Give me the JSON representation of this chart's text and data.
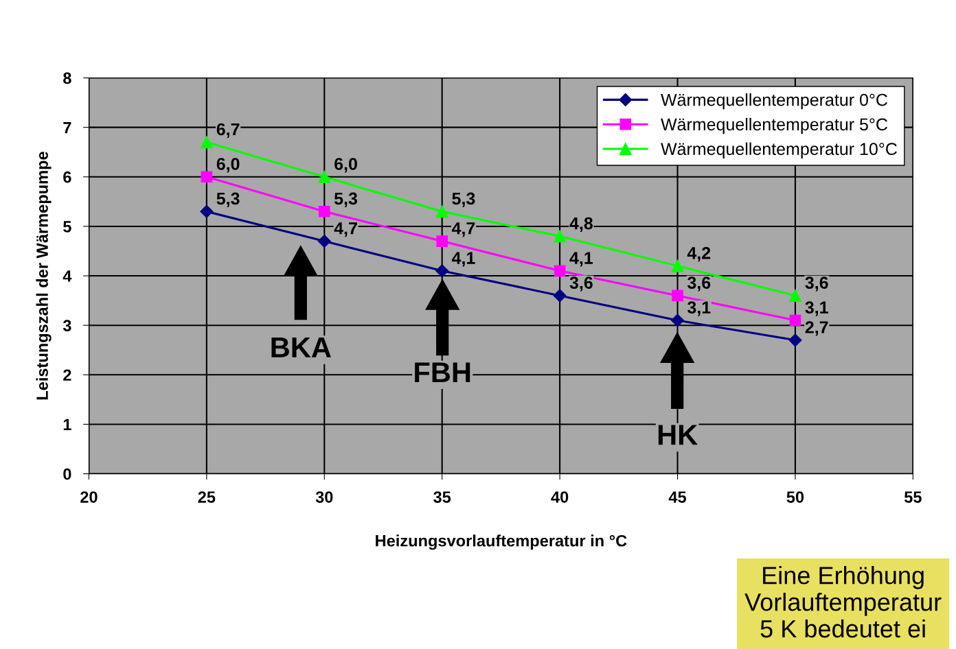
{
  "chart_data": {
    "type": "line",
    "xlabel": "Heizungsvorlauftemperatur in °C",
    "ylabel": "Leistungszahl der Wärmepumpe",
    "x": [
      25,
      30,
      35,
      40,
      45,
      50
    ],
    "series": [
      {
        "name": "Wärmequellentemperatur 0°C",
        "color": "#000080",
        "marker": "diamond",
        "values": [
          5.3,
          4.7,
          4.1,
          3.6,
          3.1,
          2.7
        ],
        "value_labels": [
          "5,3",
          "4,7",
          "4,1",
          "3,6",
          "3,1",
          "2,7"
        ]
      },
      {
        "name": "Wärmequellentemperatur 5°C",
        "color": "#ff00ff",
        "marker": "square",
        "values": [
          6.0,
          5.3,
          4.7,
          4.1,
          3.6,
          3.1
        ],
        "value_labels": [
          "6,0",
          "5,3",
          "4,7",
          "4,1",
          "3,6",
          "3,1"
        ]
      },
      {
        "name": "Wärmequellentemperatur 10°C",
        "color": "#00ff00",
        "marker": "triangle",
        "values": [
          6.7,
          6.0,
          5.3,
          4.8,
          4.2,
          3.6
        ],
        "value_labels": [
          "6,7",
          "6,0",
          "5,3",
          "4,8",
          "4,2",
          "3,6"
        ]
      }
    ],
    "xlim": [
      20,
      55
    ],
    "xticks": [
      20,
      25,
      30,
      35,
      40,
      45,
      50,
      55
    ],
    "ylim": [
      0,
      8
    ],
    "yticks": [
      0,
      1,
      2,
      3,
      4,
      5,
      6,
      7,
      8
    ],
    "grid": true,
    "legend": "top right",
    "line_style": "solid",
    "annotations": [
      "BKA",
      "FBH",
      "HK",
      "Eine Erhöhung\nVorlauftemperatur\n5 K bedeutet ei"
    ]
  }
}
